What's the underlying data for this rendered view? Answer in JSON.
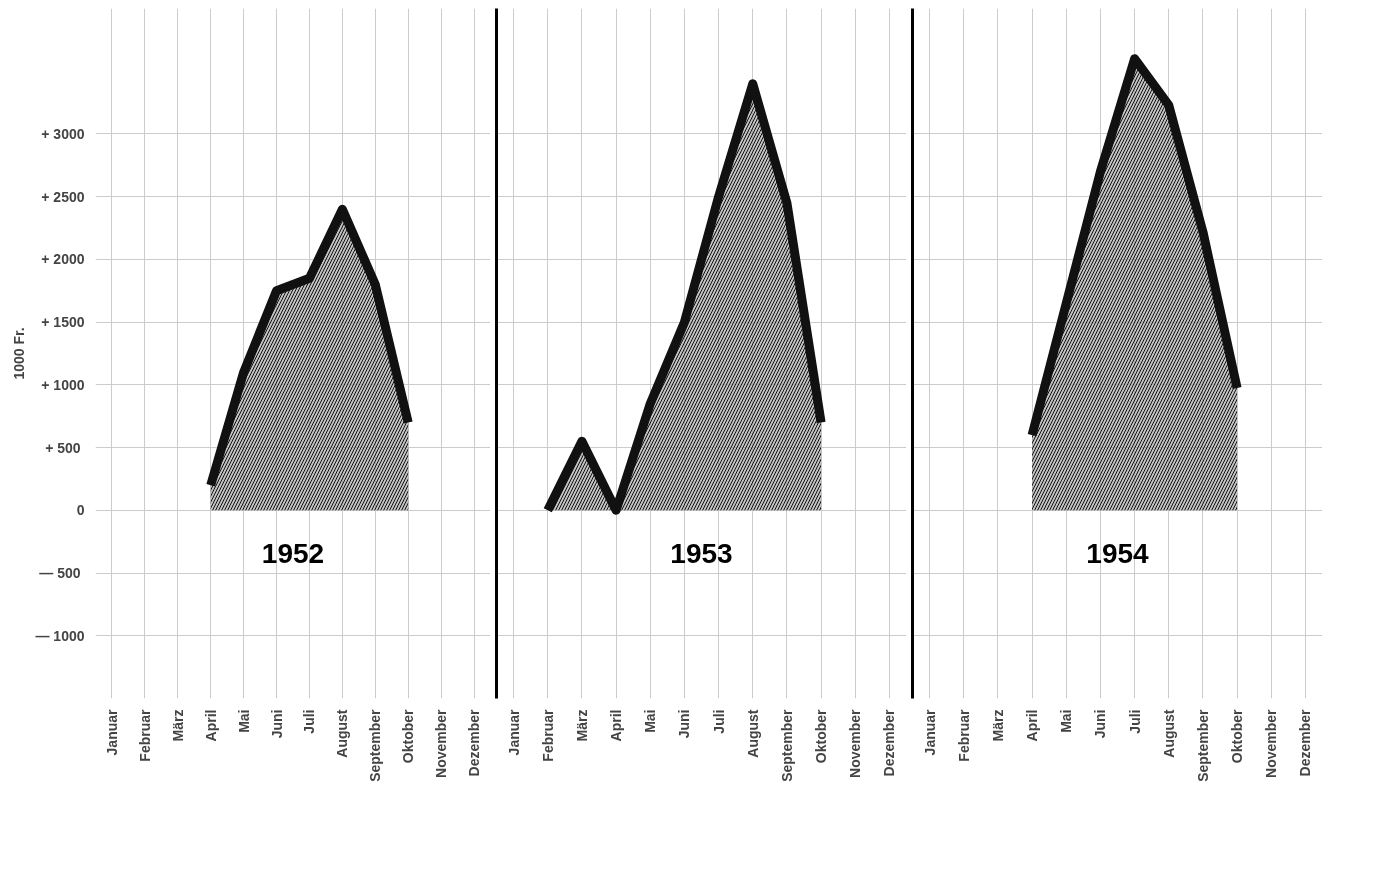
{
  "chart_data": [
    {
      "type": "area",
      "title": "1952",
      "ylabel": "1000 Fr.",
      "categories": [
        "Januar",
        "Februar",
        "März",
        "April",
        "Mai",
        "Juni",
        "Juli",
        "August",
        "September",
        "Oktober",
        "November",
        "Dezember"
      ],
      "series": [
        {
          "color": "#111111",
          "values": [
            null,
            null,
            null,
            200,
            1100,
            1750,
            1850,
            2400,
            1800,
            700,
            null,
            null
          ]
        }
      ],
      "ylim": [
        -1500,
        4000
      ],
      "yticks": [
        {
          "value": 3000,
          "label": "+ 3000"
        },
        {
          "value": 2500,
          "label": "+ 2500"
        },
        {
          "value": 2000,
          "label": "+ 2000"
        },
        {
          "value": 1500,
          "label": "+ 1500"
        },
        {
          "value": 1000,
          "label": "+ 1000"
        },
        {
          "value": 500,
          "label": "+  500"
        },
        0,
        {
          "value": -500,
          "label": "—  500"
        },
        {
          "value": -1000,
          "label": "— 1000"
        }
      ],
      "grid": true
    },
    {
      "type": "area",
      "title": "1953",
      "categories": [
        "Januar",
        "Februar",
        "März",
        "April",
        "Mai",
        "Juni",
        "Juli",
        "August",
        "September",
        "Oktober",
        "November",
        "Dezember"
      ],
      "series": [
        {
          "color": "#111111",
          "values": [
            null,
            0,
            550,
            0,
            850,
            1500,
            2500,
            3400,
            2450,
            700,
            null,
            null
          ]
        }
      ],
      "ylim": [
        -1500,
        4000
      ],
      "yticks": [
        3000,
        2500,
        2000,
        1500,
        1000,
        500,
        0,
        -500,
        -1000
      ],
      "tick_labels": "x",
      "grid": true
    },
    {
      "type": "area",
      "title": "1954",
      "categories": [
        "Januar",
        "Februar",
        "März",
        "April",
        "Mai",
        "Juni",
        "Juli",
        "August",
        "September",
        "Oktober",
        "November",
        "Dezember"
      ],
      "series": [
        {
          "color": "#111111",
          "values": [
            null,
            null,
            null,
            600,
            1650,
            2700,
            3600,
            3230,
            2220,
            975,
            null,
            null
          ]
        }
      ],
      "ylim": [
        -1500,
        4000
      ],
      "yticks": [
        3000,
        2500,
        2000,
        1500,
        1000,
        500,
        0,
        -500,
        -1000
      ],
      "tick_labels": "x",
      "grid": true
    }
  ]
}
